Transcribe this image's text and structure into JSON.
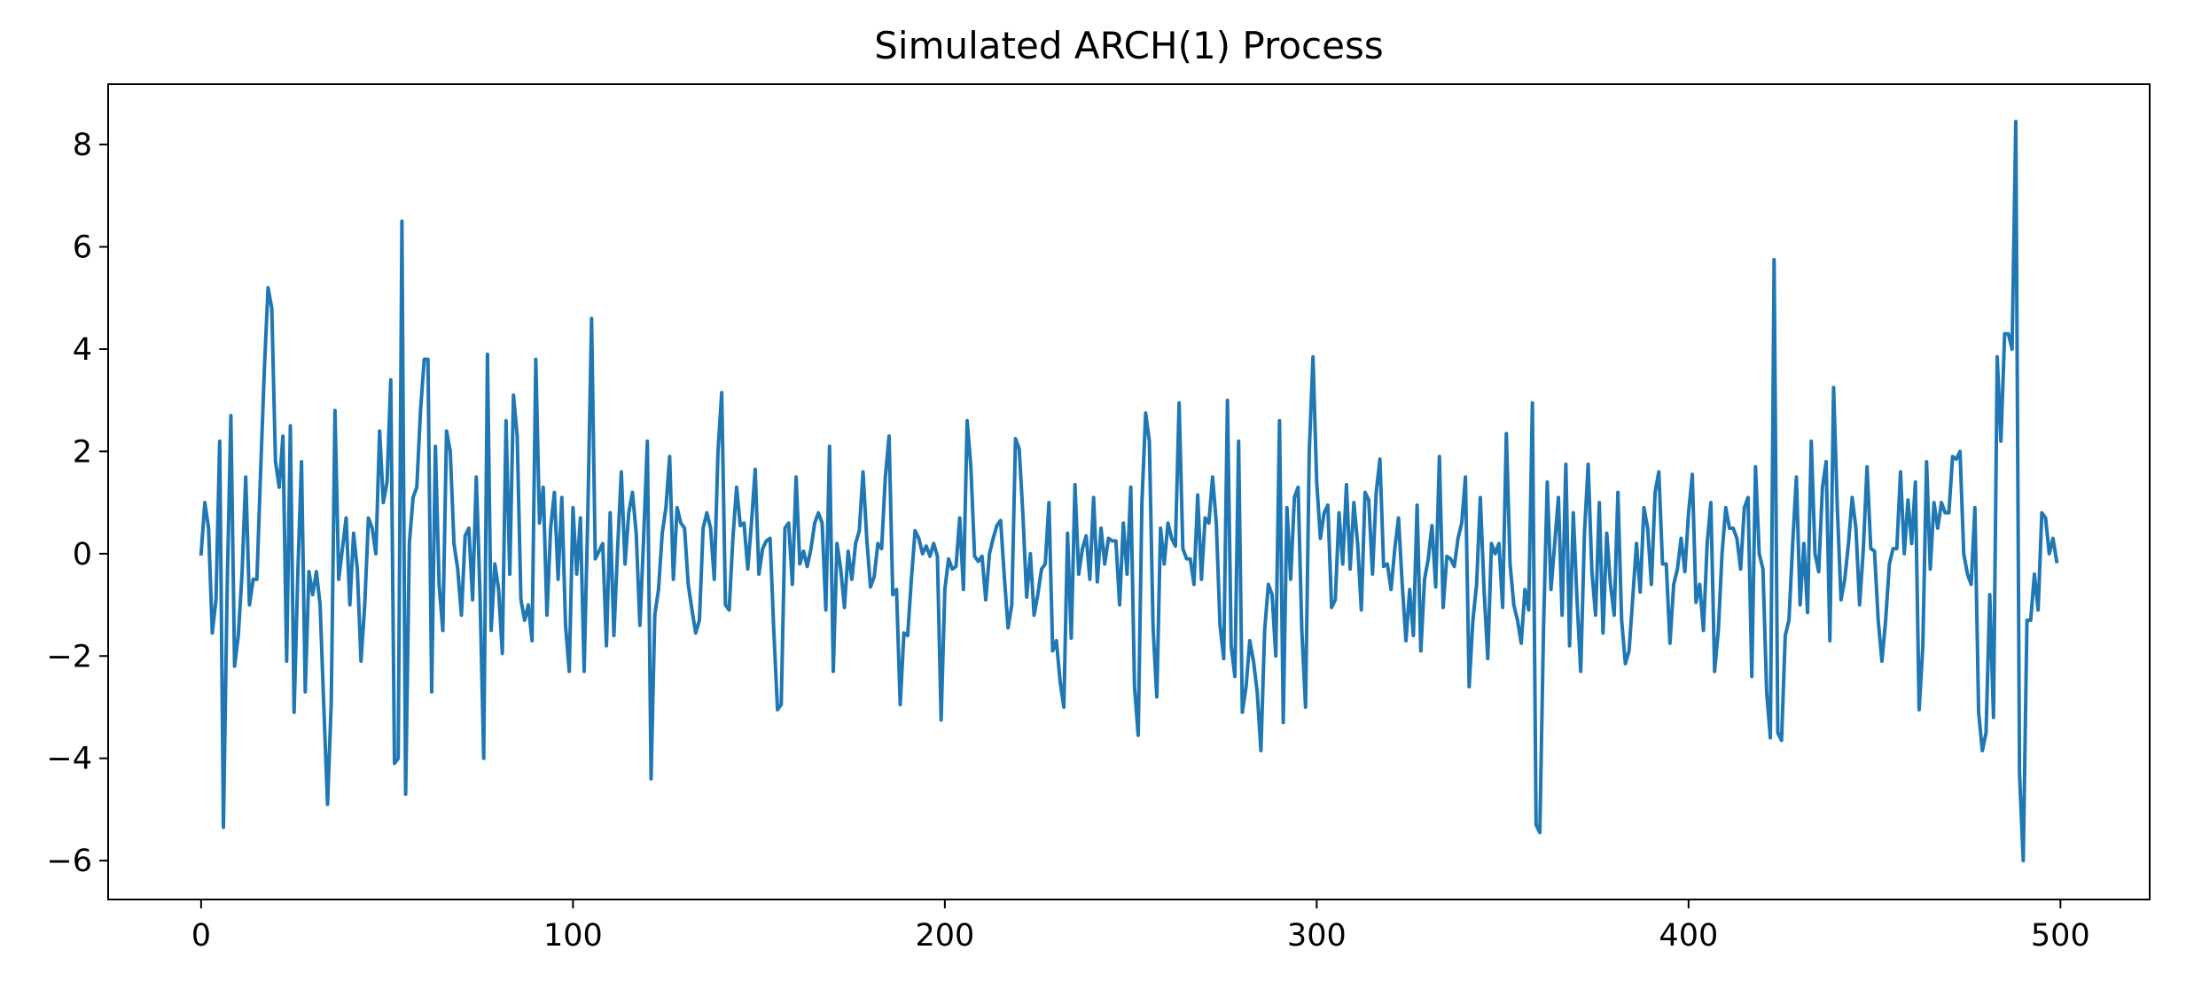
{
  "chart_data": {
    "type": "line",
    "title": "Simulated ARCH(1) Process",
    "xlabel": "",
    "ylabel": "",
    "xlim": [
      -25,
      524
    ],
    "ylim": [
      -6.76,
      9.18
    ],
    "x_ticks": [
      0,
      100,
      200,
      300,
      400,
      500
    ],
    "y_ticks": [
      -6,
      -4,
      -2,
      0,
      2,
      4,
      6,
      8
    ],
    "x_tick_labels": [
      "0",
      "100",
      "200",
      "300",
      "400",
      "500"
    ],
    "y_tick_labels": [
      "−6",
      "−4",
      "−2",
      "0",
      "2",
      "4",
      "6",
      "8"
    ],
    "grid": false,
    "legend": "none",
    "series_color": "#1f77b4",
    "series": [
      {
        "x_start": 0,
        "x_step": 1,
        "values": [
          0.0,
          1.0,
          0.5,
          -1.55,
          -0.9,
          2.2,
          -5.35,
          -0.7,
          2.7,
          -2.2,
          -1.6,
          -0.4,
          1.5,
          -1.0,
          -0.5,
          -0.5,
          1.6,
          3.6,
          5.2,
          4.8,
          1.8,
          1.3,
          2.3,
          -2.1,
          2.5,
          -3.1,
          -0.4,
          1.8,
          -2.7,
          -0.35,
          -0.8,
          -0.35,
          -1.0,
          -3.0,
          -4.9,
          -2.9,
          2.8,
          -0.5,
          0.1,
          0.7,
          -1.0,
          0.4,
          -0.3,
          -2.1,
          -1.0,
          0.7,
          0.5,
          0.0,
          2.4,
          1.0,
          1.4,
          3.4,
          -4.1,
          -4.0,
          6.5,
          -4.7,
          0.2,
          1.1,
          1.3,
          2.8,
          3.8,
          3.8,
          -2.7,
          2.1,
          -0.6,
          -1.5,
          2.4,
          2.0,
          0.2,
          -0.3,
          -1.2,
          0.35,
          0.5,
          -0.9,
          1.5,
          -0.8,
          -4.0,
          3.9,
          -1.5,
          -0.2,
          -0.7,
          -1.95,
          2.6,
          -0.4,
          3.1,
          2.3,
          -0.9,
          -1.3,
          -1.0,
          -1.7,
          3.8,
          0.6,
          1.3,
          -1.2,
          0.5,
          1.2,
          -0.5,
          1.1,
          -1.4,
          -2.3,
          0.9,
          -0.4,
          0.7,
          -2.3,
          0.8,
          4.6,
          -0.1,
          0.05,
          0.2,
          -1.8,
          0.8,
          -1.6,
          0.1,
          1.6,
          -0.2,
          0.8,
          1.2,
          0.4,
          -1.4,
          0.3,
          2.2,
          -4.4,
          -1.2,
          -0.7,
          0.4,
          0.9,
          1.9,
          -0.5,
          0.9,
          0.6,
          0.5,
          -0.6,
          -1.1,
          -1.55,
          -1.3,
          0.5,
          0.8,
          0.5,
          -0.5,
          2.0,
          3.15,
          -1.0,
          -1.1,
          0.3,
          1.3,
          0.55,
          0.6,
          -0.3,
          0.6,
          1.65,
          -0.4,
          0.1,
          0.25,
          0.3,
          -1.5,
          -3.05,
          -2.95,
          0.5,
          0.6,
          -0.6,
          1.5,
          -0.2,
          0.05,
          -0.25,
          0.1,
          0.6,
          0.8,
          0.6,
          -1.1,
          2.1,
          -2.3,
          0.2,
          -0.3,
          -1.05,
          0.05,
          -0.5,
          0.2,
          0.45,
          1.6,
          0.3,
          -0.65,
          -0.45,
          0.2,
          0.1,
          1.5,
          2.3,
          -0.8,
          -0.7,
          -2.95,
          -1.55,
          -1.6,
          -0.5,
          0.45,
          0.3,
          0.0,
          0.15,
          -0.05,
          0.2,
          -0.05,
          -3.25,
          -0.7,
          -0.1,
          -0.3,
          -0.25,
          0.7,
          -0.7,
          2.6,
          1.7,
          -0.05,
          -0.15,
          -0.05,
          -0.9,
          0.0,
          0.3,
          0.55,
          0.65,
          -0.45,
          -1.45,
          -1.0,
          2.25,
          2.05,
          0.75,
          -0.85,
          0.0,
          -1.2,
          -0.8,
          -0.3,
          -0.2,
          1.0,
          -1.9,
          -1.7,
          -2.5,
          -3.0,
          0.4,
          -1.65,
          1.35,
          -0.4,
          0.1,
          0.35,
          -0.5,
          1.1,
          -0.55,
          0.5,
          -0.2,
          0.3,
          0.25,
          0.25,
          -1.0,
          0.6,
          -0.4,
          1.3,
          -2.6,
          -3.55,
          1.0,
          2.75,
          2.2,
          -1.45,
          -2.8,
          0.5,
          -0.2,
          0.6,
          0.3,
          0.15,
          2.95,
          0.1,
          -0.1,
          -0.1,
          -0.6,
          1.15,
          -0.5,
          0.7,
          0.6,
          1.5,
          0.6,
          -1.4,
          -2.05,
          3.0,
          -1.8,
          -2.4,
          2.2,
          -3.1,
          -2.6,
          -1.7,
          -2.1,
          -2.7,
          -3.85,
          -1.5,
          -0.6,
          -0.8,
          -2.0,
          2.6,
          -3.3,
          0.9,
          -0.5,
          1.1,
          1.3,
          -1.5,
          -3.0,
          2.0,
          3.85,
          1.4,
          0.3,
          0.8,
          0.95,
          -1.05,
          -0.9,
          0.8,
          -0.2,
          1.35,
          -0.3,
          1.0,
          0.2,
          -1.1,
          1.2,
          1.05,
          -0.4,
          1.2,
          1.85,
          -0.25,
          -0.2,
          -0.7,
          0.1,
          0.7,
          -0.6,
          -1.7,
          -0.7,
          -1.6,
          0.95,
          -1.9,
          -0.5,
          -0.1,
          0.55,
          -0.65,
          1.9,
          -1.05,
          -0.05,
          -0.1,
          -0.25,
          0.3,
          0.6,
          1.5,
          -2.6,
          -1.3,
          -0.6,
          1.1,
          -0.7,
          -2.05,
          0.2,
          0.0,
          0.2,
          -1.05,
          2.35,
          -0.2,
          -1.0,
          -1.3,
          -1.75,
          -0.7,
          -1.1,
          2.95,
          -5.3,
          -5.45,
          -1.45,
          1.4,
          -0.7,
          0.2,
          1.1,
          -1.2,
          1.75,
          -1.8,
          0.8,
          -0.9,
          -2.3,
          0.4,
          1.75,
          -0.35,
          -1.2,
          1.0,
          -1.55,
          0.4,
          -0.6,
          -1.2,
          1.2,
          -1.3,
          -2.15,
          -1.9,
          -0.85,
          0.2,
          -0.75,
          0.9,
          0.5,
          -0.6,
          1.2,
          1.6,
          -0.2,
          -0.2,
          -1.75,
          -0.6,
          -0.3,
          0.3,
          -0.35,
          0.8,
          1.55,
          -0.95,
          -0.6,
          -1.5,
          0.2,
          1.0,
          -2.3,
          -1.5,
          0.0,
          0.9,
          0.5,
          0.5,
          0.3,
          -0.3,
          0.9,
          1.1,
          -2.4,
          1.7,
          0.0,
          -0.3,
          -2.7,
          -3.6,
          5.75,
          -3.5,
          -3.65,
          -1.6,
          -1.3,
          0.2,
          1.5,
          -1.0,
          0.2,
          -1.15,
          2.2,
          0.0,
          -0.35,
          1.3,
          1.8,
          -1.7,
          3.25,
          0.9,
          -0.9,
          -0.5,
          0.2,
          1.1,
          0.5,
          -1.0,
          0.1,
          1.7,
          0.1,
          0.05,
          -1.3,
          -2.1,
          -1.3,
          -0.2,
          0.1,
          0.1,
          1.6,
          0.0,
          1.05,
          0.2,
          1.4,
          -3.05,
          -1.8,
          1.8,
          -0.3,
          1.0,
          0.5,
          1.0,
          0.8,
          0.8,
          1.9,
          1.85,
          2.0,
          0.0,
          -0.4,
          -0.6,
          0.9,
          -3.1,
          -3.85,
          -3.5,
          -0.8,
          -3.2,
          3.85,
          2.2,
          4.3,
          4.3,
          4.0,
          8.45,
          -4.3,
          -6.0,
          -1.3,
          -1.3,
          -0.4,
          -1.1,
          0.8,
          0.7,
          0.0,
          0.3,
          -0.15
        ]
      }
    ]
  }
}
